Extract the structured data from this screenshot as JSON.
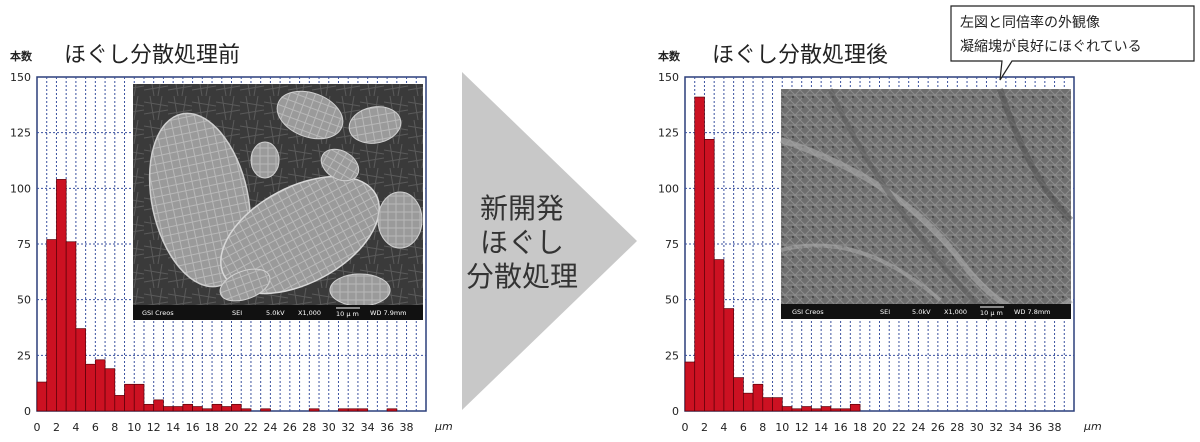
{
  "callout": {
    "line1": "左図と同倍率の外観像",
    "line2": "凝縮塊が良好にほぐれている"
  },
  "arrow": {
    "line1": "新開発",
    "line2": "ほぐし",
    "line3": "分散処理"
  },
  "chart_data": [
    {
      "type": "bar",
      "title": "ほぐし分散処理前",
      "ylabel": "本数",
      "xlabel": "μm",
      "ylim": [
        0,
        150
      ],
      "yticks": [
        0,
        25,
        50,
        75,
        100,
        125,
        150
      ],
      "xlim": [
        0,
        40
      ],
      "xticks": [
        0,
        2,
        4,
        6,
        8,
        10,
        12,
        14,
        16,
        18,
        20,
        22,
        24,
        26,
        28,
        30,
        32,
        34,
        36,
        38
      ],
      "bin_width": 1,
      "bar_color": "#cc1122",
      "grid": true,
      "values": [
        13,
        77,
        104,
        76,
        37,
        21,
        23,
        19,
        7,
        12,
        12,
        3,
        5,
        2,
        2,
        3,
        2,
        1,
        3,
        2,
        3,
        1,
        0,
        1,
        0,
        0,
        0,
        0,
        1,
        0,
        0,
        1,
        1,
        1,
        0,
        0,
        1,
        0,
        0,
        0
      ],
      "sem": {
        "brand": "GSI Creos",
        "mode": "SEI",
        "kv": "5.0kV",
        "mag": "X1,000",
        "scale": "10 μ m",
        "wd": "WD 7.9mm"
      }
    },
    {
      "type": "bar",
      "title": "ほぐし分散処理後",
      "ylabel": "本数",
      "xlabel": "μm",
      "ylim": [
        0,
        150
      ],
      "yticks": [
        0,
        25,
        50,
        75,
        100,
        125,
        150
      ],
      "xlim": [
        0,
        40
      ],
      "xticks": [
        0,
        2,
        4,
        6,
        8,
        10,
        12,
        14,
        16,
        18,
        20,
        22,
        24,
        26,
        28,
        30,
        32,
        34,
        36,
        38
      ],
      "bin_width": 1,
      "bar_color": "#cc1122",
      "grid": true,
      "values": [
        22,
        141,
        122,
        68,
        46,
        15,
        8,
        12,
        6,
        6,
        2,
        1,
        2,
        1,
        2,
        1,
        1,
        3,
        0,
        0,
        0,
        0,
        0,
        0,
        0,
        0,
        0,
        0,
        0,
        0,
        0,
        0,
        0,
        0,
        0,
        0,
        0,
        0,
        0,
        0
      ],
      "sem": {
        "brand": "GSI Creos",
        "mode": "SEI",
        "kv": "5.0kV",
        "mag": "X1,000",
        "scale": "10 μ m",
        "wd": "WD 7.8mm"
      }
    }
  ]
}
